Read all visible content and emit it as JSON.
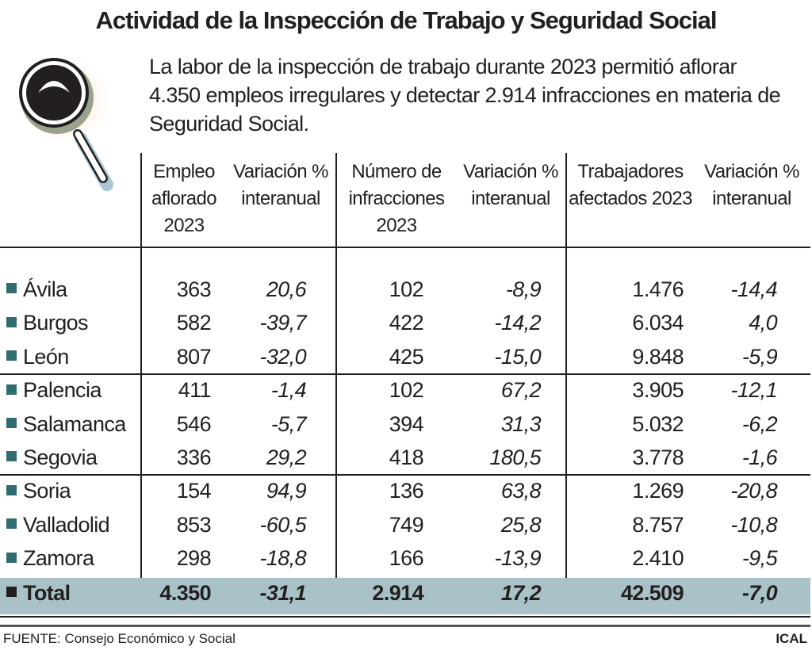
{
  "title": "Actividad de la Inspección de Trabajo y Seguridad Social",
  "subtitle": "La labor de la inspección de trabajo durante 2023 permitió aflorar 4.350 empleos irregulares y detectar 2.914 infracciones en materia de Seguridad Social.",
  "icon": "magnifying-glass-icon",
  "colors": {
    "bullet": "#2f6d6e",
    "total_bg": "#a9c2c8"
  },
  "headers": [
    "Empleo aflorado 2023",
    "Variación % interanual",
    "Número de infracciones 2023",
    "Variación % interanual",
    "Trabajadores afectados 2023",
    "Variación % interanual"
  ],
  "rows": [
    {
      "name": "Ávila",
      "values": [
        "363",
        "20,6",
        "102",
        "-8,9",
        "1.476",
        "-14,4"
      ]
    },
    {
      "name": "Burgos",
      "values": [
        "582",
        "-39,7",
        "422",
        "-14,2",
        "6.034",
        "4,0"
      ]
    },
    {
      "name": "León",
      "values": [
        "807",
        "-32,0",
        "425",
        "-15,0",
        "9.848",
        "-5,9"
      ]
    },
    {
      "name": "Palencia",
      "values": [
        "411",
        "-1,4",
        "102",
        "67,2",
        "3.905",
        "-12,1"
      ]
    },
    {
      "name": "Salamanca",
      "values": [
        "546",
        "-5,7",
        "394",
        "31,3",
        "5.032",
        "-6,2"
      ]
    },
    {
      "name": "Segovia",
      "values": [
        "336",
        "29,2",
        "418",
        "180,5",
        "3.778",
        "-1,6"
      ]
    },
    {
      "name": "Soria",
      "values": [
        "154",
        "94,9",
        "136",
        "63,8",
        "1.269",
        "-20,8"
      ]
    },
    {
      "name": "Valladolid",
      "values": [
        "853",
        "-60,5",
        "749",
        "25,8",
        "8.757",
        "-10,8"
      ]
    },
    {
      "name": "Zamora",
      "values": [
        "298",
        "-18,8",
        "166",
        "-13,9",
        "2.410",
        "-9,5"
      ]
    }
  ],
  "total": {
    "name": "Total",
    "values": [
      "4.350",
      "-31,1",
      "2.914",
      "17,2",
      "42.509",
      "-7,0"
    ]
  },
  "footer": {
    "source": "FUENTE: Consejo Económico y Social",
    "brand": "ICAL"
  }
}
